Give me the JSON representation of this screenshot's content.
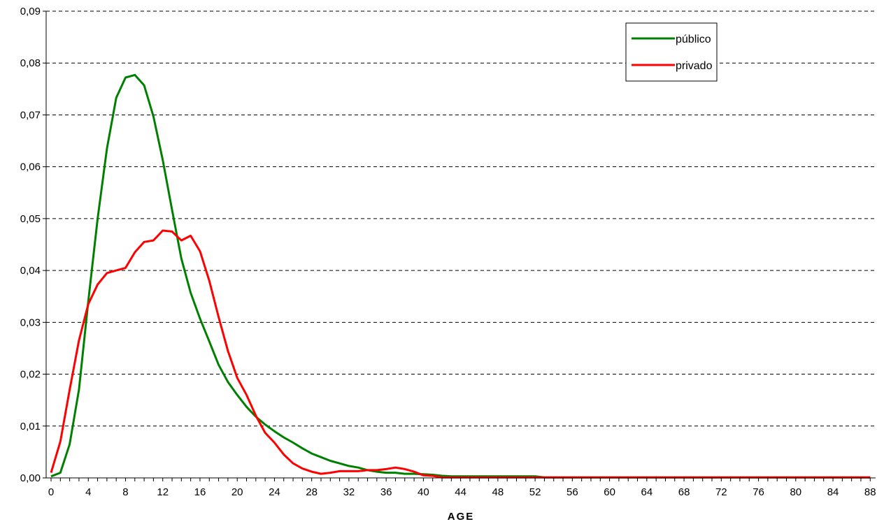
{
  "chart_data": {
    "type": "line",
    "title": "",
    "xlabel": "AGE",
    "ylabel": "",
    "xlim": [
      0,
      88
    ],
    "ylim": [
      0,
      0.09
    ],
    "x_ticks": [
      "0",
      "4",
      "8",
      "12",
      "16",
      "20",
      "24",
      "28",
      "32",
      "36",
      "40",
      "44",
      "48",
      "52",
      "56",
      "60",
      "64",
      "68",
      "72",
      "76",
      "80",
      "84",
      "88"
    ],
    "y_ticks": [
      "0,00",
      "0,01",
      "0,02",
      "0,03",
      "0,04",
      "0,05",
      "0,06",
      "0,07",
      "0,08",
      "0,09"
    ],
    "grid": "horizontal dashed",
    "legend_position": "top-right",
    "series": [
      {
        "name": "público",
        "color": "#008000",
        "x": [
          0,
          1,
          2,
          3,
          4,
          5,
          6,
          7,
          8,
          9,
          10,
          11,
          12,
          13,
          14,
          15,
          16,
          17,
          18,
          19,
          20,
          21,
          22,
          23,
          24,
          25,
          26,
          27,
          28,
          29,
          30,
          31,
          32,
          33,
          34,
          35,
          36,
          37,
          38,
          39,
          40,
          41,
          42,
          43,
          44,
          46,
          48,
          50,
          52,
          53,
          56,
          60,
          64,
          68,
          72,
          76,
          80,
          84,
          88
        ],
        "y": [
          0.0003,
          0.001,
          0.0065,
          0.017,
          0.034,
          0.05,
          0.0635,
          0.0733,
          0.0772,
          0.0777,
          0.0757,
          0.0697,
          0.0613,
          0.0517,
          0.0423,
          0.0357,
          0.0307,
          0.0263,
          0.0218,
          0.0185,
          0.016,
          0.0137,
          0.0118,
          0.0103,
          0.009,
          0.0078,
          0.0068,
          0.0057,
          0.0047,
          0.004,
          0.0033,
          0.0028,
          0.0023,
          0.002,
          0.0015,
          0.0012,
          0.001,
          0.001,
          0.0008,
          0.0008,
          0.0007,
          0.0006,
          0.0004,
          0.0003,
          0.0003,
          0.0003,
          0.0003,
          0.0003,
          0.0003,
          0.0001,
          0.0001,
          0.0001,
          0.0001,
          0.0001,
          0.0001,
          0.0001,
          0.0001,
          0.0001,
          0.0001
        ]
      },
      {
        "name": "privado",
        "color": "#ff0000",
        "x": [
          0,
          1,
          2,
          3,
          4,
          5,
          6,
          7,
          8,
          9,
          10,
          11,
          12,
          13,
          14,
          15,
          16,
          17,
          18,
          19,
          20,
          21,
          22,
          23,
          24,
          25,
          26,
          27,
          28,
          29,
          30,
          31,
          32,
          33,
          34,
          35,
          36,
          37,
          38,
          39,
          40,
          41,
          42,
          44,
          48,
          52,
          56,
          60,
          64,
          68,
          72,
          76,
          80,
          84,
          88
        ],
        "y": [
          0.001,
          0.007,
          0.017,
          0.0265,
          0.0335,
          0.0373,
          0.0395,
          0.04,
          0.0405,
          0.0435,
          0.0455,
          0.0458,
          0.0477,
          0.0475,
          0.0458,
          0.0467,
          0.0437,
          0.038,
          0.031,
          0.0245,
          0.0193,
          0.016,
          0.012,
          0.0087,
          0.0068,
          0.0045,
          0.0028,
          0.0018,
          0.0012,
          0.0008,
          0.001,
          0.0013,
          0.0013,
          0.0013,
          0.0015,
          0.0015,
          0.0017,
          0.002,
          0.0017,
          0.0012,
          0.0005,
          0.0004,
          0.0001,
          0.0001,
          0.0001,
          0.0001,
          0.0001,
          0.0001,
          0.0001,
          0.0001,
          0.0001,
          0.0001,
          0.0001,
          0.0001,
          0.0001
        ]
      }
    ]
  }
}
